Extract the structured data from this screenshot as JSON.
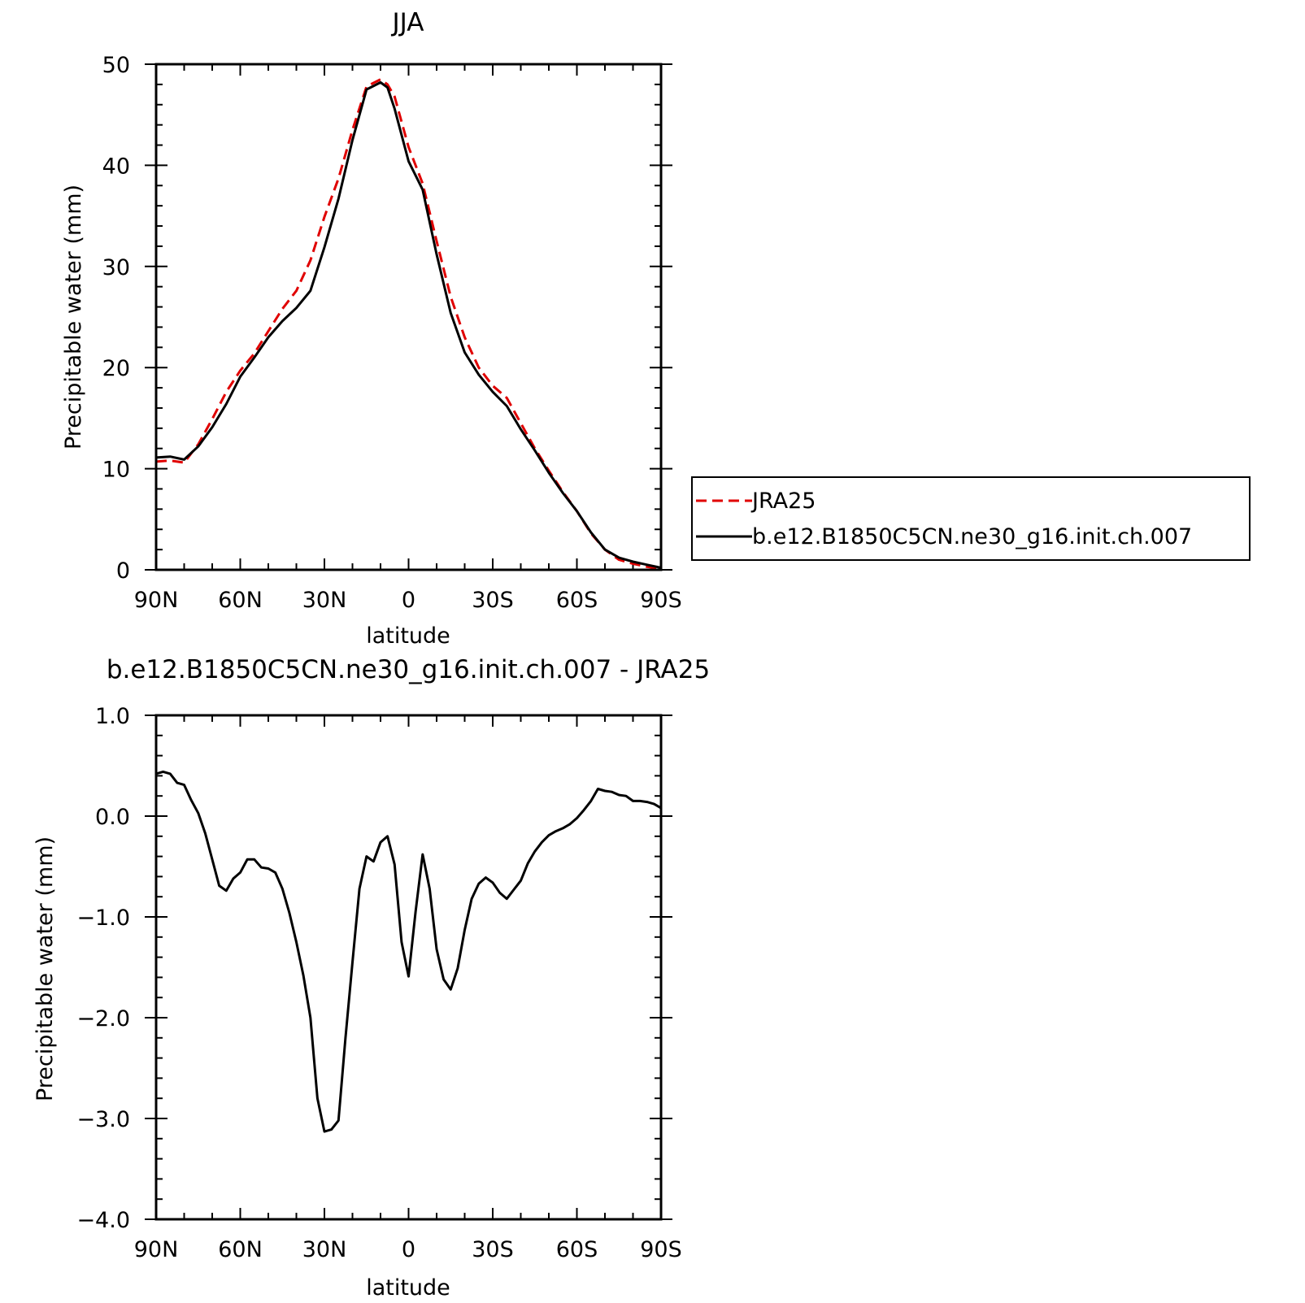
{
  "chart_data": [
    {
      "type": "line",
      "title": "JJA",
      "xlabel": "latitude",
      "ylabel": "Precipitable water (mm)",
      "xlim": [
        90,
        -90
      ],
      "ylim": [
        0,
        50
      ],
      "xticks": [
        90,
        60,
        30,
        0,
        -30,
        -60,
        -90
      ],
      "xtick_labels": [
        "90N",
        "60N",
        "30N",
        "0",
        "30S",
        "60S",
        "90S"
      ],
      "yticks": [
        0,
        10,
        20,
        30,
        40,
        50
      ],
      "ytick_labels": [
        "0",
        "10",
        "20",
        "30",
        "40",
        "50"
      ],
      "grid": false,
      "legend": "right",
      "series": [
        {
          "name": "JRA25",
          "color": "#e00000",
          "dash": true,
          "x": [
            90,
            85,
            80,
            75,
            70,
            65,
            60,
            55,
            50,
            45,
            40,
            35,
            30,
            25,
            20,
            15,
            10,
            7.5,
            5,
            0,
            -5,
            -10,
            -15,
            -20,
            -25,
            -30,
            -35,
            -40,
            -45,
            -50,
            -55,
            -60,
            -65,
            -70,
            -75,
            -80,
            -85,
            -90
          ],
          "y": [
            10.7,
            10.8,
            10.6,
            12.4,
            14.9,
            17.6,
            19.7,
            21.4,
            23.6,
            25.8,
            27.6,
            30.6,
            34.9,
            38.7,
            43.5,
            47.8,
            48.5,
            48.0,
            46.8,
            41.8,
            38.2,
            32.5,
            27.0,
            23.0,
            20.0,
            18.2,
            17.0,
            14.5,
            12.0,
            9.8,
            7.7,
            5.8,
            3.6,
            2.0,
            1.0,
            0.6,
            0.3,
            0.1
          ]
        },
        {
          "name": "b.e12.B1850C5CN.ne30_g16.init.ch.007",
          "color": "#000000",
          "dash": false,
          "x": [
            90,
            85,
            80,
            75,
            70,
            65,
            60,
            55,
            50,
            45,
            40,
            35,
            30,
            25,
            20,
            15,
            10,
            7.5,
            5,
            0,
            -5,
            -10,
            -15,
            -20,
            -25,
            -30,
            -35,
            -40,
            -45,
            -50,
            -55,
            -60,
            -65,
            -70,
            -75,
            -80,
            -85,
            -90
          ],
          "y": [
            11.1,
            11.2,
            10.9,
            12.2,
            14.1,
            16.4,
            19.1,
            21.0,
            23.0,
            24.6,
            25.9,
            27.6,
            31.9,
            36.7,
            42.5,
            47.5,
            48.2,
            47.7,
            45.6,
            40.4,
            37.6,
            31.2,
            25.4,
            21.5,
            19.3,
            17.6,
            16.2,
            13.9,
            11.8,
            9.6,
            7.6,
            5.8,
            3.7,
            2.0,
            1.2,
            0.8,
            0.5,
            0.2
          ]
        }
      ]
    },
    {
      "type": "line",
      "title": "b.e12.B1850C5CN.ne30_g16.init.ch.007 - JRA25",
      "xlabel": "latitude",
      "ylabel": "Precipitable water (mm)",
      "xlim": [
        90,
        -90
      ],
      "ylim": [
        -4.0,
        1.0
      ],
      "xticks": [
        90,
        60,
        30,
        0,
        -30,
        -60,
        -90
      ],
      "xtick_labels": [
        "90N",
        "60N",
        "30N",
        "0",
        "30S",
        "60S",
        "90S"
      ],
      "yticks": [
        -4.0,
        -3.0,
        -2.0,
        -1.0,
        0.0,
        1.0
      ],
      "ytick_labels": [
        "−4.0",
        "−3.0",
        "−2.0",
        "−1.0",
        "0.0",
        "1.0"
      ],
      "grid": false,
      "series": [
        {
          "color": "#000000",
          "dash": false,
          "x": [
            90,
            87.5,
            85,
            82.5,
            80,
            77.5,
            75,
            72.5,
            70,
            67.5,
            65,
            62.5,
            60,
            57.5,
            55,
            52.5,
            50,
            47.5,
            45,
            42.5,
            40,
            37.5,
            35,
            32.5,
            30,
            27.5,
            25,
            22.5,
            20,
            17.5,
            15,
            12.5,
            10,
            7.5,
            5,
            2.5,
            0,
            -2.5,
            -5,
            -7.5,
            -10,
            -12.5,
            -15,
            -17.5,
            -20,
            -22.5,
            -25,
            -27.5,
            -30,
            -32.5,
            -35,
            -37.5,
            -40,
            -42.5,
            -45,
            -47.5,
            -50,
            -52.5,
            -55,
            -57.5,
            -60,
            -62.5,
            -65,
            -67.5,
            -70,
            -72.5,
            -75,
            -77.5,
            -80,
            -82.5,
            -85,
            -87.5,
            -90
          ],
          "y": [
            0.42,
            0.44,
            0.42,
            0.33,
            0.31,
            0.16,
            0.03,
            -0.17,
            -0.43,
            -0.69,
            -0.74,
            -0.62,
            -0.56,
            -0.43,
            -0.43,
            -0.51,
            -0.52,
            -0.56,
            -0.72,
            -0.96,
            -1.25,
            -1.58,
            -2.0,
            -2.8,
            -3.13,
            -3.11,
            -3.02,
            -2.2,
            -1.45,
            -0.72,
            -0.4,
            -0.45,
            -0.26,
            -0.2,
            -0.48,
            -1.25,
            -1.59,
            -0.95,
            -0.38,
            -0.72,
            -1.32,
            -1.62,
            -1.72,
            -1.51,
            -1.13,
            -0.82,
            -0.67,
            -0.61,
            -0.66,
            -0.76,
            -0.82,
            -0.73,
            -0.64,
            -0.47,
            -0.35,
            -0.26,
            -0.19,
            -0.15,
            -0.12,
            -0.08,
            -0.02,
            0.06,
            0.15,
            0.27,
            0.25,
            0.24,
            0.21,
            0.2,
            0.15,
            0.15,
            0.14,
            0.12,
            0.08
          ]
        }
      ]
    }
  ]
}
